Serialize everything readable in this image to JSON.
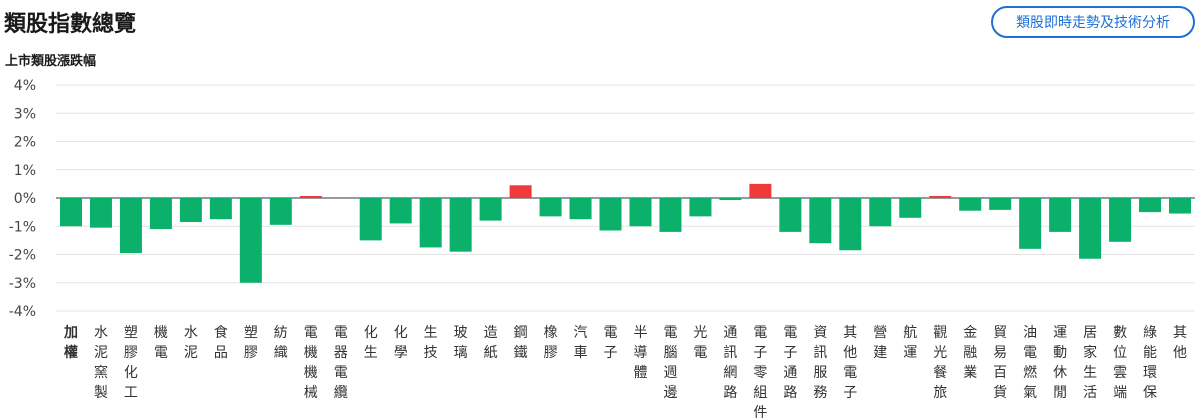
{
  "header": {
    "title": "類股指數總覽",
    "analysis_button": "類股即時走勢及技術分析"
  },
  "chart_data": {
    "type": "bar",
    "title": "上市類股漲跌幅",
    "ylim": [
      -4,
      4
    ],
    "yticks": [
      "4%",
      "3%",
      "2%",
      "1%",
      "0%",
      "-1%",
      "-2%",
      "-3%",
      "-4%"
    ],
    "grid": true,
    "colors": {
      "up": "#f03a3a",
      "down": "#0bb06a",
      "grid": "#e4e4e4",
      "axis": "#333333"
    },
    "categories": [
      "加權",
      "水泥窯製",
      "塑膠化工",
      "機電",
      "水泥",
      "食品",
      "塑膠",
      "紡織",
      "電機機械",
      "電器電纜",
      "化生",
      "化學",
      "生技",
      "玻璃",
      "造紙",
      "鋼鐵",
      "橡膠",
      "汽車",
      "電子",
      "半導體",
      "電腦週邊",
      "光電",
      "通訊網路",
      "電子零組件",
      "電子通路",
      "資訊服務",
      "其他電子",
      "營建",
      "航運",
      "觀光餐旅",
      "金融業",
      "貿易百貨",
      "油電燃氣",
      "運動休閒",
      "居家生活",
      "數位雲端",
      "綠能環保",
      "其他"
    ],
    "values": [
      -1.0,
      -1.05,
      -1.95,
      -1.1,
      -0.85,
      -0.75,
      -3.0,
      -0.95,
      0.05,
      0.0,
      -1.5,
      -0.9,
      -1.75,
      -1.9,
      -0.8,
      0.45,
      -0.65,
      -0.75,
      -1.15,
      -1.0,
      -1.2,
      -0.65,
      -0.05,
      0.5,
      -1.2,
      -1.6,
      -1.85,
      -1.0,
      -0.7,
      0.05,
      -0.45,
      -0.42,
      -1.8,
      -1.2,
      -2.15,
      -1.55,
      -0.5,
      -0.55
    ]
  }
}
